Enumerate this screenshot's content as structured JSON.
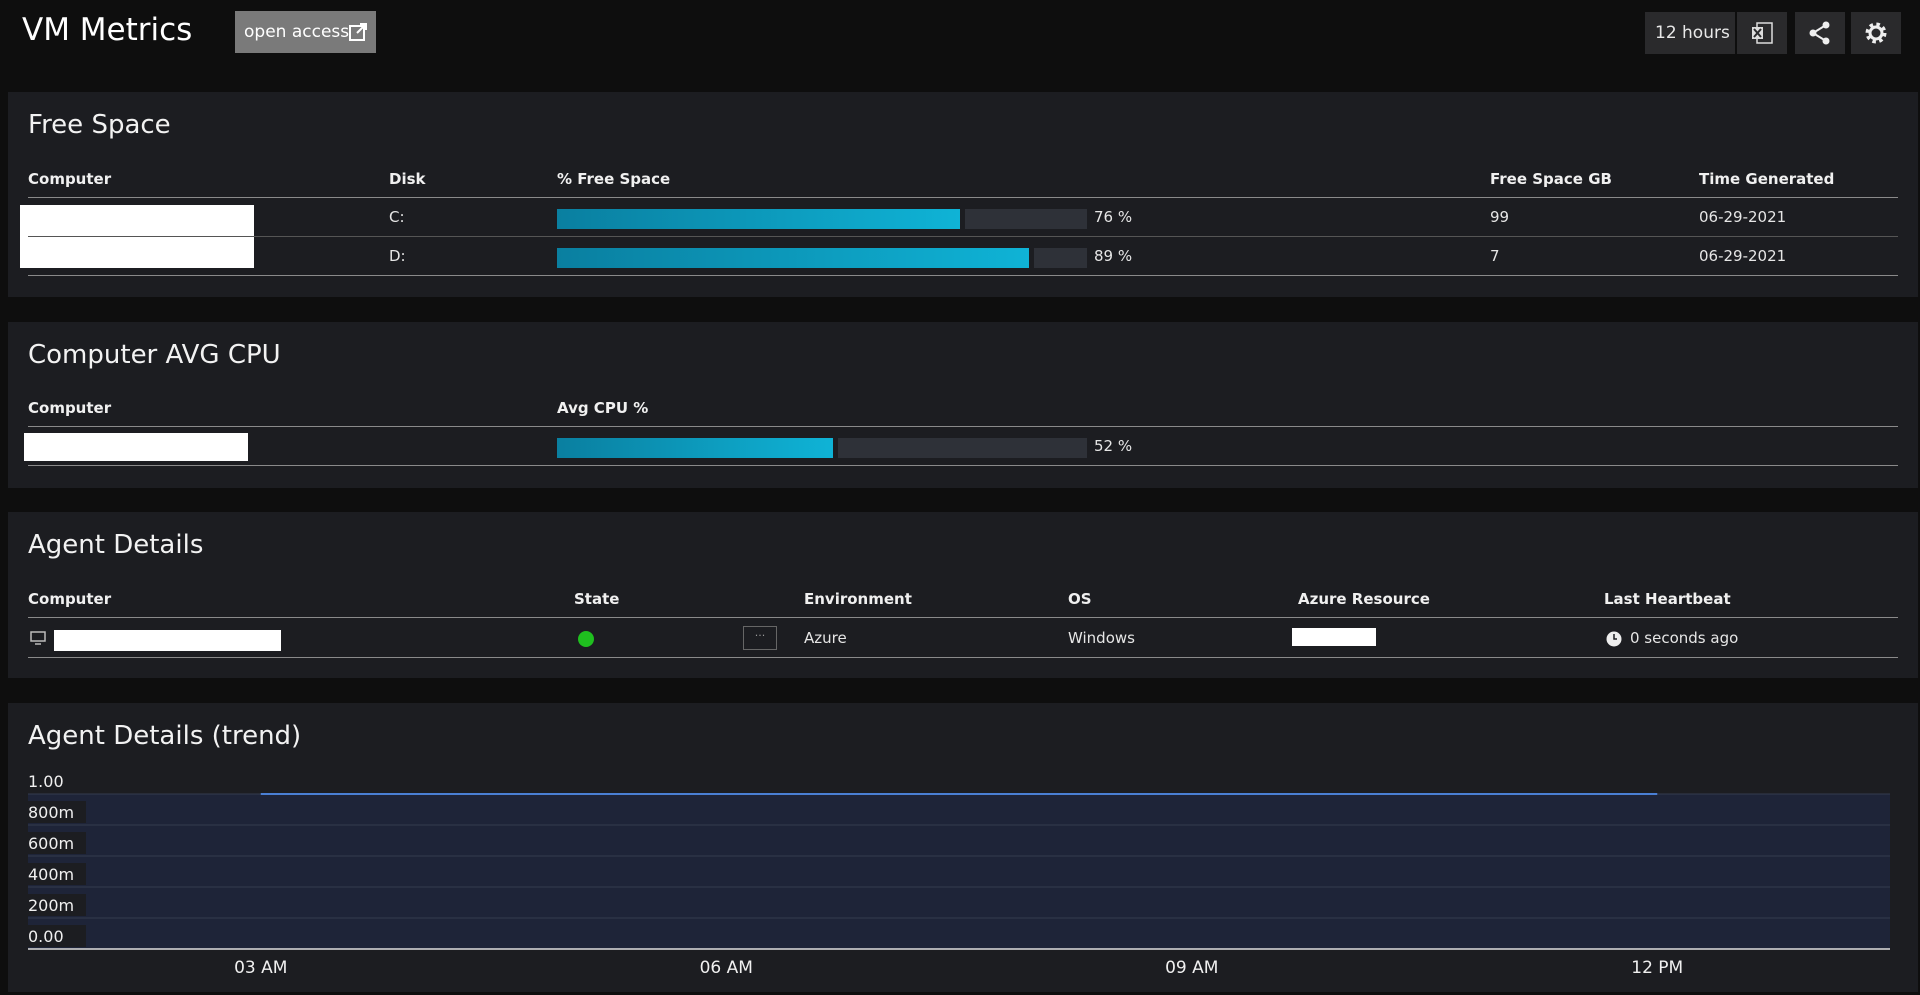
{
  "header": {
    "title": "VM Metrics",
    "open_access": "open access",
    "time_range": "12 hours"
  },
  "free_space": {
    "title": "Free Space",
    "columns": [
      "Computer",
      "Disk",
      "% Free Space",
      "Free Space GB",
      "Time Generated"
    ],
    "rows": [
      {
        "disk": "C:",
        "percent": 76,
        "percent_label": "76 %",
        "gb": 99,
        "time": "06-29-2021"
      },
      {
        "disk": "D:",
        "percent": 89,
        "percent_label": "89 %",
        "gb": 7,
        "time": "06-29-2021"
      }
    ]
  },
  "avg_cpu": {
    "title": "Computer AVG CPU",
    "columns": [
      "Computer",
      "Avg CPU %"
    ],
    "rows": [
      {
        "percent": 52,
        "percent_label": "52 %"
      }
    ]
  },
  "agent_details": {
    "title": "Agent Details",
    "columns": [
      "Computer",
      "State",
      "Environment",
      "OS",
      "Azure Resource",
      "Last Heartbeat"
    ],
    "rows": [
      {
        "environment": "Azure",
        "os": "Windows",
        "last_heartbeat": "0 seconds ago"
      }
    ]
  },
  "trend": {
    "title": "Agent Details (trend)",
    "ylim": [
      0,
      1
    ],
    "yticks": [
      {
        "value": 0,
        "label": "0.00"
      },
      {
        "value": 0.2,
        "label": "200m"
      },
      {
        "value": 0.4,
        "label": "400m"
      },
      {
        "value": 0.6,
        "label": "600m"
      },
      {
        "value": 0.8,
        "label": "800m"
      },
      {
        "value": 1,
        "label": "1.00"
      }
    ],
    "categories": [
      "03 AM",
      "06 AM",
      "09 AM",
      "12 PM"
    ],
    "values": [
      1,
      1,
      1,
      1
    ],
    "color": "#4a7fd4"
  }
}
